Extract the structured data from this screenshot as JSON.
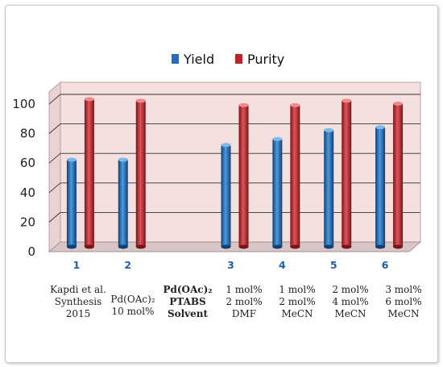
{
  "colors": {
    "yield": "#1f6fbf",
    "purity": "#b8262b",
    "plot_bg": "#f5e0e0",
    "floor": "#d8c6c6",
    "grid": "#333333"
  },
  "legend": [
    {
      "name": "Yield",
      "color": "#1f6fbf"
    },
    {
      "name": "Purity",
      "color": "#b8262b"
    }
  ],
  "chart_data": {
    "type": "bar",
    "categories": [
      "1",
      "2",
      "",
      "3",
      "4",
      "5",
      "6"
    ],
    "series": [
      {
        "name": "Yield",
        "values": [
          59,
          59,
          null,
          69,
          73,
          79,
          81
        ]
      },
      {
        "name": "Purity",
        "values": [
          100,
          99,
          null,
          96,
          96,
          99,
          97
        ]
      }
    ],
    "yticks": [
      0,
      20,
      40,
      60,
      80,
      100
    ],
    "ylim": [
      0,
      100
    ],
    "grid": true,
    "legend_position": "top",
    "title": "",
    "xlabel": "",
    "ylabel": ""
  },
  "conditions": [
    {
      "lines": [
        "Kapdi et al.",
        "Synthesis",
        "2015"
      ],
      "bold": false
    },
    {
      "lines": [
        "Pd(OAc)₂",
        "10 mol%"
      ],
      "bold": false
    },
    {
      "lines": [
        "Pd(OAc)₂",
        "PTABS",
        "Solvent"
      ],
      "bold": true
    },
    {
      "lines": [
        "1 mol%",
        "2 mol%",
        "DMF"
      ],
      "bold": false
    },
    {
      "lines": [
        "1 mol%",
        "2 mol%",
        "MeCN"
      ],
      "bold": false
    },
    {
      "lines": [
        "2 mol%",
        "4 mol%",
        "MeCN"
      ],
      "bold": false
    },
    {
      "lines": [
        "3 mol%",
        "6 mol%",
        "MeCN"
      ],
      "bold": false
    }
  ]
}
